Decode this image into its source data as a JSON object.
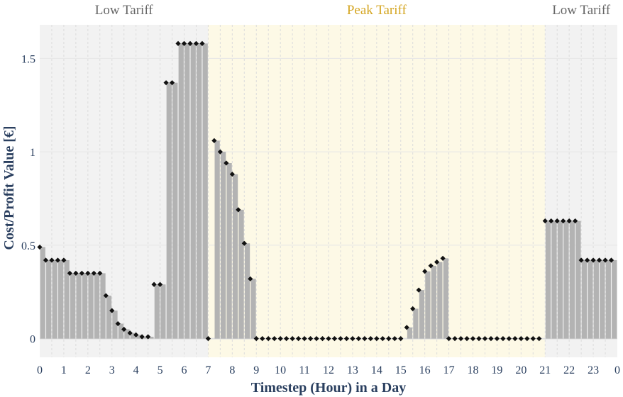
{
  "chart_data": {
    "type": "bar",
    "xlabel": "Timestep (Hour) in a Day",
    "ylabel": "Cost/Profit Value [€]",
    "xlim": [
      0,
      24
    ],
    "ylim": [
      -0.1,
      1.68
    ],
    "x_ticks": [
      {
        "value": 0,
        "label": "0"
      },
      {
        "value": 1,
        "label": "1"
      },
      {
        "value": 2,
        "label": "2"
      },
      {
        "value": 3,
        "label": "3"
      },
      {
        "value": 4,
        "label": "4"
      },
      {
        "value": 5,
        "label": "5"
      },
      {
        "value": 6,
        "label": "6"
      },
      {
        "value": 7,
        "label": "7"
      },
      {
        "value": 8,
        "label": "8"
      },
      {
        "value": 9,
        "label": "9"
      },
      {
        "value": 10,
        "label": "10"
      },
      {
        "value": 11,
        "label": "11"
      },
      {
        "value": 12,
        "label": "12"
      },
      {
        "value": 13,
        "label": "13"
      },
      {
        "value": 14,
        "label": "14"
      },
      {
        "value": 15,
        "label": "15"
      },
      {
        "value": 16,
        "label": "16"
      },
      {
        "value": 17,
        "label": "17"
      },
      {
        "value": 18,
        "label": "18"
      },
      {
        "value": 19,
        "label": "19"
      },
      {
        "value": 20,
        "label": "20"
      },
      {
        "value": 21,
        "label": "21"
      },
      {
        "value": 22,
        "label": "22"
      },
      {
        "value": 23,
        "label": "23"
      },
      {
        "value": 24,
        "label": "0"
      }
    ],
    "y_ticks": [
      {
        "value": 0,
        "label": "0"
      },
      {
        "value": 0.5,
        "label": "0.5"
      },
      {
        "value": 1,
        "label": "1"
      },
      {
        "value": 1.5,
        "label": "1.5"
      }
    ],
    "grid": true,
    "bands": [
      {
        "label": "Low Tariff",
        "start": 0,
        "end": 7,
        "color": "#f2f2f2",
        "label_color": "#666666"
      },
      {
        "label": "Peak Tariff",
        "start": 7,
        "end": 21,
        "color": "#fdf9e6",
        "label_color": "#d4a520"
      },
      {
        "label": "Low Tariff",
        "start": 21,
        "end": 24,
        "color": "#f2f2f2",
        "label_color": "#666666"
      }
    ],
    "bar_color": "#b3b3b3",
    "marker_color": "#111111",
    "step": 0.25,
    "values": [
      0.49,
      0.42,
      0.42,
      0.42,
      0.42,
      0.35,
      0.35,
      0.35,
      0.35,
      0.35,
      0.35,
      0.23,
      0.15,
      0.08,
      0.05,
      0.03,
      0.02,
      0.01,
      0.01,
      0.29,
      0.29,
      1.37,
      1.37,
      1.58,
      1.58,
      1.58,
      1.58,
      1.58,
      0.0,
      1.06,
      1.0,
      0.94,
      0.88,
      0.69,
      0.51,
      0.32,
      0.0,
      0.0,
      0.0,
      0.0,
      0.0,
      0.0,
      0.0,
      0.0,
      0.0,
      0.0,
      0.0,
      0.0,
      0.0,
      0.0,
      0.0,
      0.0,
      0.0,
      0.0,
      0.0,
      0.0,
      0.0,
      0.0,
      0.0,
      0.0,
      0.0,
      0.06,
      0.16,
      0.26,
      0.36,
      0.39,
      0.41,
      0.43,
      0.0,
      0.0,
      0.0,
      0.0,
      0.0,
      0.0,
      0.0,
      0.0,
      0.0,
      0.0,
      0.0,
      0.0,
      0.0,
      0.0,
      0.0,
      0.0,
      0.63,
      0.63,
      0.63,
      0.63,
      0.63,
      0.63,
      0.42,
      0.42,
      0.42,
      0.42,
      0.42,
      0.42
    ]
  }
}
